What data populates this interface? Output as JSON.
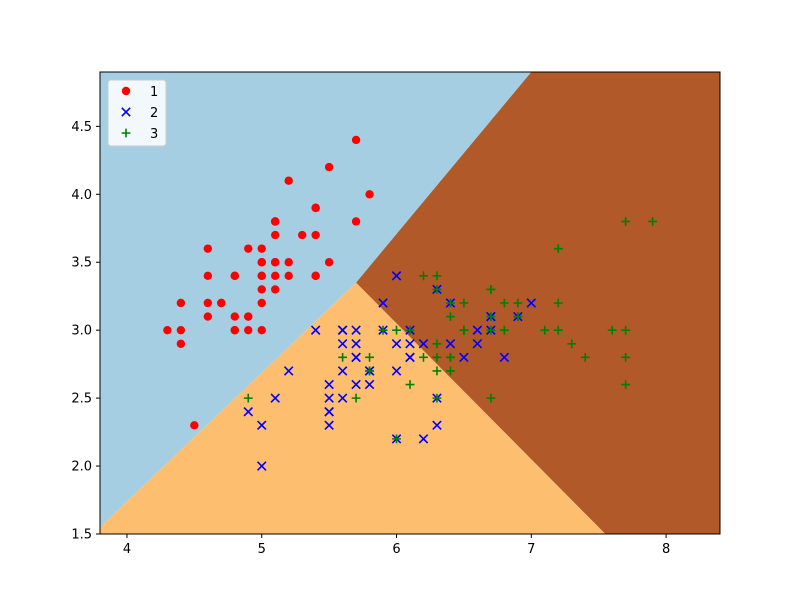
{
  "chart_data": {
    "type": "scatter",
    "title": "",
    "xlabel": "",
    "ylabel": "",
    "xlim": [
      3.8,
      8.4
    ],
    "ylim": [
      1.5,
      4.9
    ],
    "xticks": [
      4,
      5,
      6,
      7,
      8
    ],
    "yticks": [
      1.5,
      2.0,
      2.5,
      3.0,
      3.5,
      4.0,
      4.5
    ],
    "grid": false,
    "legend_position": "upper-left",
    "background_regions": {
      "description_colors": [
        "#a6cee3",
        "#fdbf6f",
        "#b15928"
      ],
      "region_1_color": "#a6cee3",
      "region_2_color": "#fdbf6f",
      "region_3_color": "#b15928",
      "boundary_1_2": [
        [
          3.8,
          1.55
        ],
        [
          5.7,
          3.35
        ]
      ],
      "boundary_1_3": [
        [
          5.7,
          3.35
        ],
        [
          7.0,
          4.9
        ]
      ],
      "boundary_2_3": [
        [
          5.7,
          3.35
        ],
        [
          7.55,
          1.5
        ]
      ]
    },
    "series": [
      {
        "name": "1",
        "marker": "circle",
        "color": "#ff0000",
        "points": [
          [
            5.1,
            3.5
          ],
          [
            4.9,
            3.0
          ],
          [
            4.7,
            3.2
          ],
          [
            4.6,
            3.1
          ],
          [
            5.0,
            3.6
          ],
          [
            5.4,
            3.9
          ],
          [
            4.6,
            3.4
          ],
          [
            5.0,
            3.4
          ],
          [
            4.4,
            2.9
          ],
          [
            4.9,
            3.1
          ],
          [
            5.4,
            3.7
          ],
          [
            4.8,
            3.4
          ],
          [
            4.8,
            3.0
          ],
          [
            4.3,
            3.0
          ],
          [
            5.8,
            4.0
          ],
          [
            5.7,
            4.4
          ],
          [
            5.4,
            3.9
          ],
          [
            5.1,
            3.5
          ],
          [
            5.7,
            3.8
          ],
          [
            5.1,
            3.8
          ],
          [
            5.4,
            3.4
          ],
          [
            5.1,
            3.7
          ],
          [
            4.6,
            3.6
          ],
          [
            5.1,
            3.3
          ],
          [
            4.8,
            3.4
          ],
          [
            5.0,
            3.0
          ],
          [
            5.0,
            3.4
          ],
          [
            5.2,
            3.5
          ],
          [
            5.2,
            3.4
          ],
          [
            4.7,
            3.2
          ],
          [
            4.8,
            3.1
          ],
          [
            5.4,
            3.4
          ],
          [
            5.2,
            4.1
          ],
          [
            5.5,
            4.2
          ],
          [
            4.9,
            3.1
          ],
          [
            5.0,
            3.2
          ],
          [
            5.5,
            3.5
          ],
          [
            4.9,
            3.6
          ],
          [
            4.4,
            3.0
          ],
          [
            5.1,
            3.4
          ],
          [
            5.0,
            3.5
          ],
          [
            4.5,
            2.3
          ],
          [
            4.4,
            3.2
          ],
          [
            5.0,
            3.5
          ],
          [
            5.1,
            3.8
          ],
          [
            4.8,
            3.0
          ],
          [
            5.1,
            3.8
          ],
          [
            4.6,
            3.2
          ],
          [
            5.3,
            3.7
          ],
          [
            5.0,
            3.3
          ]
        ]
      },
      {
        "name": "2",
        "marker": "x",
        "color": "#0000ff",
        "points": [
          [
            7.0,
            3.2
          ],
          [
            6.4,
            3.2
          ],
          [
            6.9,
            3.1
          ],
          [
            5.5,
            2.3
          ],
          [
            6.5,
            2.8
          ],
          [
            5.7,
            2.8
          ],
          [
            6.3,
            3.3
          ],
          [
            4.9,
            2.4
          ],
          [
            6.6,
            2.9
          ],
          [
            5.2,
            2.7
          ],
          [
            5.0,
            2.0
          ],
          [
            5.9,
            3.0
          ],
          [
            6.0,
            2.2
          ],
          [
            6.1,
            2.9
          ],
          [
            5.6,
            2.9
          ],
          [
            6.7,
            3.1
          ],
          [
            5.6,
            3.0
          ],
          [
            5.8,
            2.7
          ],
          [
            6.2,
            2.2
          ],
          [
            5.6,
            2.5
          ],
          [
            5.9,
            3.2
          ],
          [
            6.1,
            2.8
          ],
          [
            6.3,
            2.5
          ],
          [
            6.1,
            2.8
          ],
          [
            6.4,
            2.9
          ],
          [
            6.6,
            3.0
          ],
          [
            6.8,
            2.8
          ],
          [
            6.7,
            3.0
          ],
          [
            6.0,
            2.9
          ],
          [
            5.7,
            2.6
          ],
          [
            5.5,
            2.4
          ],
          [
            5.5,
            2.4
          ],
          [
            5.8,
            2.7
          ],
          [
            6.0,
            2.7
          ],
          [
            5.4,
            3.0
          ],
          [
            6.0,
            3.4
          ],
          [
            6.7,
            3.1
          ],
          [
            6.3,
            2.3
          ],
          [
            5.6,
            3.0
          ],
          [
            5.5,
            2.5
          ],
          [
            5.5,
            2.6
          ],
          [
            6.1,
            3.0
          ],
          [
            5.8,
            2.6
          ],
          [
            5.0,
            2.3
          ],
          [
            5.6,
            2.7
          ],
          [
            5.7,
            3.0
          ],
          [
            5.7,
            2.9
          ],
          [
            6.2,
            2.9
          ],
          [
            5.1,
            2.5
          ],
          [
            5.7,
            2.8
          ]
        ]
      },
      {
        "name": "3",
        "marker": "plus",
        "color": "#008000",
        "points": [
          [
            6.3,
            3.3
          ],
          [
            5.8,
            2.7
          ],
          [
            7.1,
            3.0
          ],
          [
            6.3,
            2.9
          ],
          [
            6.5,
            3.0
          ],
          [
            7.6,
            3.0
          ],
          [
            4.9,
            2.5
          ],
          [
            7.3,
            2.9
          ],
          [
            6.7,
            2.5
          ],
          [
            7.2,
            3.6
          ],
          [
            6.5,
            3.2
          ],
          [
            6.4,
            2.7
          ],
          [
            6.8,
            3.0
          ],
          [
            5.7,
            2.5
          ],
          [
            5.8,
            2.8
          ],
          [
            6.4,
            3.2
          ],
          [
            6.5,
            3.0
          ],
          [
            7.7,
            3.8
          ],
          [
            7.7,
            2.6
          ],
          [
            6.0,
            2.2
          ],
          [
            6.9,
            3.2
          ],
          [
            5.6,
            2.8
          ],
          [
            7.7,
            2.8
          ],
          [
            6.3,
            2.7
          ],
          [
            6.7,
            3.3
          ],
          [
            7.2,
            3.2
          ],
          [
            6.2,
            2.8
          ],
          [
            6.1,
            3.0
          ],
          [
            6.4,
            2.8
          ],
          [
            7.2,
            3.0
          ],
          [
            7.4,
            2.8
          ],
          [
            7.9,
            3.8
          ],
          [
            6.4,
            2.8
          ],
          [
            6.3,
            2.8
          ],
          [
            6.1,
            2.6
          ],
          [
            7.7,
            3.0
          ],
          [
            6.3,
            3.4
          ],
          [
            6.4,
            3.1
          ],
          [
            6.0,
            3.0
          ],
          [
            6.9,
            3.1
          ],
          [
            6.7,
            3.1
          ],
          [
            6.9,
            3.1
          ],
          [
            5.8,
            2.7
          ],
          [
            6.8,
            3.2
          ],
          [
            6.7,
            3.3
          ],
          [
            6.7,
            3.0
          ],
          [
            6.3,
            2.5
          ],
          [
            6.5,
            3.0
          ],
          [
            6.2,
            3.4
          ],
          [
            5.9,
            3.0
          ]
        ]
      }
    ]
  }
}
